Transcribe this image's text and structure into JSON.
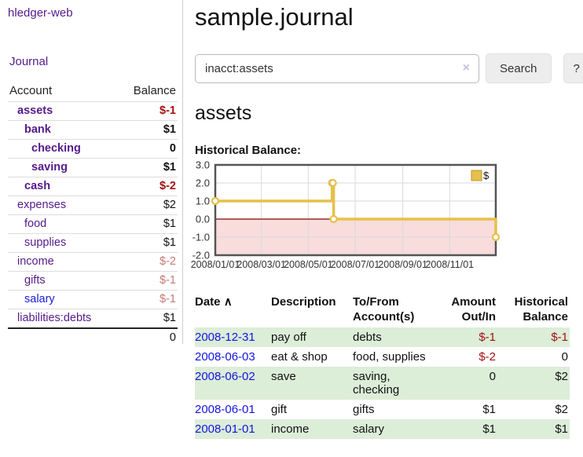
{
  "app": {
    "title": "hledger-web"
  },
  "sidebar": {
    "journal_link": "Journal",
    "header": {
      "account": "Account",
      "balance": "Balance"
    },
    "accounts": [
      {
        "name": "assets",
        "balance": "$-1"
      },
      {
        "name": "bank",
        "balance": "$1"
      },
      {
        "name": "checking",
        "balance": "0"
      },
      {
        "name": "saving",
        "balance": "$1"
      },
      {
        "name": "cash",
        "balance": "$-2"
      },
      {
        "name": "expenses",
        "balance": "$2"
      },
      {
        "name": "food",
        "balance": "$1"
      },
      {
        "name": "supplies",
        "balance": "$1"
      },
      {
        "name": "income",
        "balance": "$-2"
      },
      {
        "name": "gifts",
        "balance": "$-1"
      },
      {
        "name": "salary",
        "balance": "$-1"
      },
      {
        "name": "liabilities:debts",
        "balance": "$1"
      }
    ],
    "total": "0"
  },
  "main": {
    "title": "sample.journal",
    "search": {
      "value": "inacct:assets",
      "clear_icon": "×",
      "button_label": "Search",
      "help_label": "?"
    },
    "section_title": "assets",
    "chart_label": "Historical Balance:"
  },
  "register": {
    "columns": [
      "Date",
      "Description",
      "To/From Account(s)",
      "Amount Out/In",
      "Historical Balance"
    ],
    "sort_icon": "∧",
    "rows": [
      {
        "date": "2008-12-31",
        "description": "pay off",
        "accounts": "debts",
        "amount": "$-1",
        "balance": "$-1"
      },
      {
        "date": "2008-06-03",
        "description": "eat & shop",
        "accounts": "food, supplies",
        "amount": "$-2",
        "balance": "0"
      },
      {
        "date": "2008-06-02",
        "description": "save",
        "accounts": "saving, checking",
        "amount": "0",
        "balance": "$2"
      },
      {
        "date": "2008-06-01",
        "description": "gift",
        "accounts": "gifts",
        "amount": "$1",
        "balance": "$2"
      },
      {
        "date": "2008-01-01",
        "description": "income",
        "accounts": "salary",
        "amount": "$1",
        "balance": "$1"
      }
    ]
  },
  "chart_data": {
    "type": "line",
    "step": true,
    "title": "Historical Balance:",
    "x_range": [
      "2008-01-01",
      "2008-12-31"
    ],
    "x_ticks": [
      "2008/01/01",
      "2008/03/01",
      "2008/05/01",
      "2008/07/01",
      "2008/09/01",
      "2008/11/01"
    ],
    "y_ticks": [
      3.0,
      2.0,
      1.0,
      0.0,
      -1.0,
      -2.0
    ],
    "ylim": [
      -2.0,
      3.0
    ],
    "grid": true,
    "legend_position": "top-right",
    "legend": [
      {
        "label": "$",
        "color": "#e6c04a"
      }
    ],
    "series": [
      {
        "name": "$",
        "color": "#e6c04a",
        "points": [
          {
            "date": "2008-01-01",
            "value": 1
          },
          {
            "date": "2008-06-01",
            "value": 2
          },
          {
            "date": "2008-06-02",
            "value": 2
          },
          {
            "date": "2008-06-03",
            "value": 0
          },
          {
            "date": "2008-12-31",
            "value": -1
          }
        ]
      }
    ],
    "negative_region_fill": "#f9dcdc",
    "zero_line_color": "#8b0000"
  },
  "colors": {
    "link_purple": "#551a8b",
    "link_blue": "#1414e0",
    "negative_strong": "#a31212",
    "negative_muted": "#c87878",
    "row_highlight_green": "#dcedd8",
    "chart_line_gold": "#e6c04a",
    "chart_negative_fill": "#f9dcdc",
    "chart_zero_line": "#8b0000"
  }
}
